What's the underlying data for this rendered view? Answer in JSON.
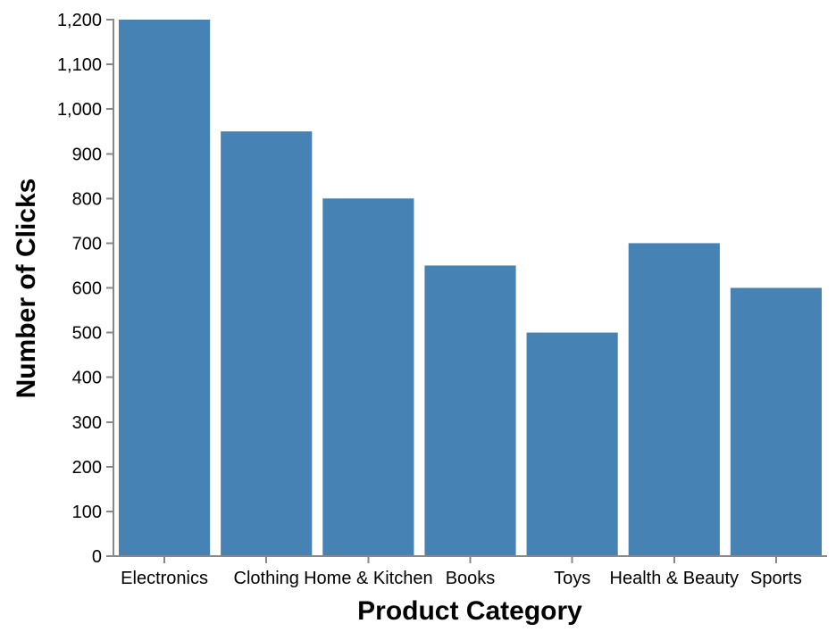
{
  "chart_data": {
    "type": "bar",
    "categories": [
      "Electronics",
      "Clothing",
      "Home & Kitchen",
      "Books",
      "Toys",
      "Health & Beauty",
      "Sports"
    ],
    "values": [
      1200,
      950,
      800,
      650,
      500,
      700,
      600
    ],
    "xlabel": "Product Category",
    "ylabel": "Number of Clicks",
    "ylim": [
      0,
      1200
    ],
    "yticks": [
      0,
      100,
      200,
      300,
      400,
      500,
      600,
      700,
      800,
      900,
      1000,
      1100,
      1200
    ],
    "grid": false,
    "legend": "none",
    "colors": {
      "bar": "#4682b4",
      "axis": "#888888",
      "text": "#000000"
    }
  }
}
